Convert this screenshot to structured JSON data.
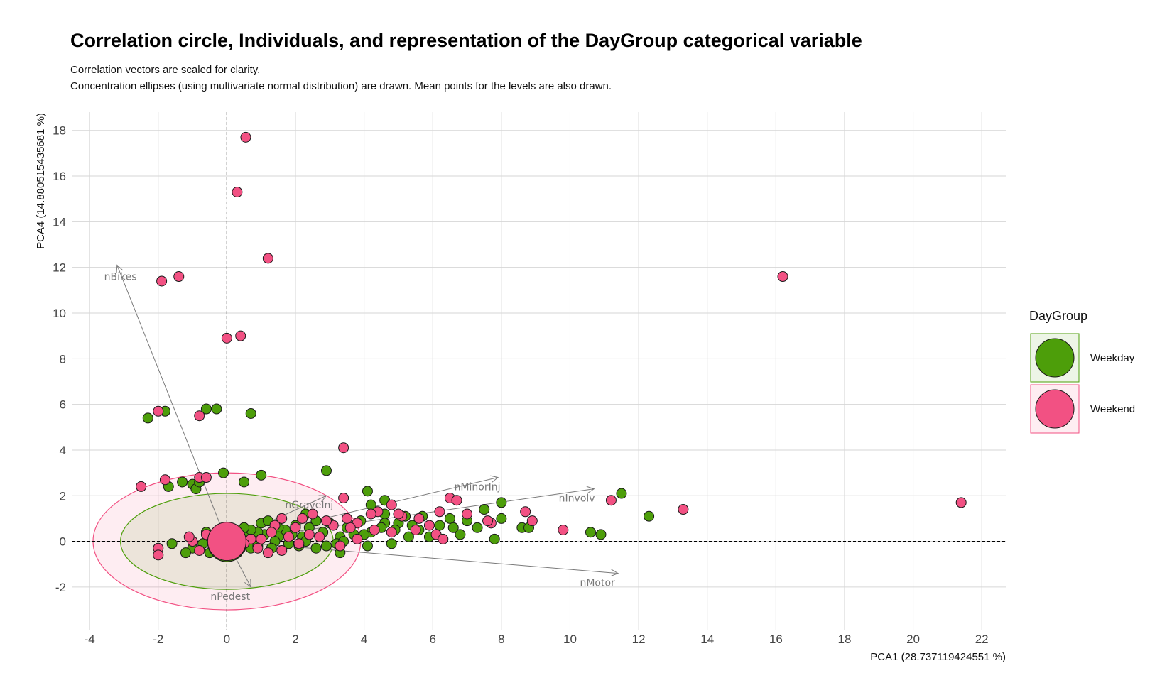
{
  "title": "Correlation circle, Individuals, and representation of the DayGroup categorical variable",
  "subtitle_lines": [
    "Correlation vectors are scaled for clarity.",
    "Concentration ellipses (using multivariate normal distribution) are drawn. Mean points for the levels are also drawn."
  ],
  "chart_data": {
    "type": "scatter",
    "xlabel": "PCA1 (28.737119424551 %)",
    "ylabel": "PCA4 (14.880515435681 %)",
    "xlim": [
      -4.5,
      22.7
    ],
    "ylim": [
      -3.9,
      18.8
    ],
    "xticks": [
      -4,
      -2,
      0,
      2,
      4,
      6,
      8,
      10,
      12,
      14,
      16,
      18,
      20,
      22
    ],
    "yticks": [
      -2,
      0,
      2,
      4,
      6,
      8,
      10,
      12,
      14,
      16,
      18
    ],
    "grid": true,
    "legend": {
      "title": "DayGroup",
      "placement": "right",
      "items": [
        {
          "label": "Weekday",
          "color": "#4d9e0a"
        },
        {
          "label": "Weekend",
          "color": "#f25183"
        }
      ]
    },
    "variables": [
      {
        "name": "nBikes",
        "x": -3.2,
        "y": 12.1
      },
      {
        "name": "nMinorInj",
        "x": 7.9,
        "y": 2.8
      },
      {
        "name": "nInvolv",
        "x": 10.7,
        "y": 2.3
      },
      {
        "name": "nGraveInj",
        "x": 2.9,
        "y": 2.0
      },
      {
        "name": "nMotor",
        "x": 11.4,
        "y": -1.4
      },
      {
        "name": "nPedest",
        "x": 0.7,
        "y": -2.0
      }
    ],
    "variable_label_positions": [
      {
        "name": "nBikes",
        "x": -3.1,
        "y": 11.6
      },
      {
        "name": "nMinorInj",
        "x": 7.3,
        "y": 2.4
      },
      {
        "name": "nInvolv",
        "x": 10.2,
        "y": 1.9
      },
      {
        "name": "nGraveInj",
        "x": 2.4,
        "y": 1.6
      },
      {
        "name": "nMotor",
        "x": 10.8,
        "y": -1.8
      },
      {
        "name": "nPedest",
        "x": 0.1,
        "y": -2.4
      }
    ],
    "ellipses": [
      {
        "group": "Weekend",
        "cx": 0,
        "cy": 0,
        "rx": 3.9,
        "ry": 3.0
      },
      {
        "group": "Weekday",
        "cx": 0,
        "cy": 0,
        "rx": 3.1,
        "ry": 2.1
      }
    ],
    "group_means": [
      {
        "group": "Weekday",
        "x": 0.0,
        "y": -0.05
      },
      {
        "group": "Weekend",
        "x": 0.0,
        "y": 0.0
      }
    ],
    "series": [
      {
        "name": "Weekday",
        "color": "#4d9e0a",
        "points": [
          [
            -2.3,
            5.4
          ],
          [
            -1.8,
            5.7
          ],
          [
            -0.6,
            5.8
          ],
          [
            -0.3,
            5.8
          ],
          [
            0.7,
            5.6
          ],
          [
            -0.1,
            3.0
          ],
          [
            0.5,
            2.6
          ],
          [
            1.0,
            2.9
          ],
          [
            2.9,
            3.1
          ],
          [
            -1.3,
            2.6
          ],
          [
            -1.0,
            2.5
          ],
          [
            -0.9,
            2.3
          ],
          [
            -0.8,
            2.6
          ],
          [
            -1.7,
            2.4
          ],
          [
            4.1,
            2.2
          ],
          [
            11.5,
            2.1
          ],
          [
            12.3,
            1.1
          ],
          [
            7.5,
            1.4
          ],
          [
            8.0,
            1.7
          ],
          [
            8.0,
            1.0
          ],
          [
            8.6,
            0.6
          ],
          [
            8.8,
            0.6
          ],
          [
            7.8,
            0.1
          ],
          [
            10.6,
            0.4
          ],
          [
            10.9,
            0.3
          ],
          [
            6.8,
            0.3
          ],
          [
            7.3,
            0.6
          ],
          [
            6.2,
            0.7
          ],
          [
            6.5,
            1.0
          ],
          [
            5.7,
            1.1
          ],
          [
            5.4,
            0.7
          ],
          [
            5.0,
            0.8
          ],
          [
            5.2,
            1.1
          ],
          [
            4.6,
            1.8
          ],
          [
            4.2,
            1.6
          ],
          [
            4.6,
            1.2
          ],
          [
            4.2,
            0.4
          ],
          [
            4.0,
            0.3
          ],
          [
            4.1,
            -0.2
          ],
          [
            4.8,
            -0.1
          ],
          [
            5.3,
            0.2
          ],
          [
            5.9,
            0.2
          ],
          [
            4.6,
            0.8
          ],
          [
            4.9,
            0.5
          ],
          [
            4.5,
            0.6
          ],
          [
            3.9,
            0.9
          ],
          [
            3.5,
            0.6
          ],
          [
            3.3,
            0.2
          ],
          [
            3.2,
            -0.1
          ],
          [
            3.3,
            -0.5
          ],
          [
            3.0,
            0.8
          ],
          [
            2.8,
            0.4
          ],
          [
            2.6,
            0.9
          ],
          [
            2.4,
            0.6
          ],
          [
            2.3,
            1.2
          ],
          [
            2.2,
            0.2
          ],
          [
            2.6,
            -0.3
          ],
          [
            2.3,
            0.0
          ],
          [
            2.0,
            0.7
          ],
          [
            1.9,
            0.3
          ],
          [
            1.7,
            0.5
          ],
          [
            1.5,
            0.6
          ],
          [
            1.5,
            0.2
          ],
          [
            1.4,
            0.0
          ],
          [
            1.3,
            -0.3
          ],
          [
            1.1,
            0.3
          ],
          [
            1.0,
            0.8
          ],
          [
            0.9,
            0.4
          ],
          [
            0.8,
            0.0
          ],
          [
            0.7,
            -0.3
          ],
          [
            0.7,
            0.5
          ],
          [
            0.5,
            0.2
          ],
          [
            0.4,
            -0.3
          ],
          [
            0.3,
            0.4
          ],
          [
            0.2,
            -0.1
          ],
          [
            -0.1,
            -0.5
          ],
          [
            -0.3,
            -0.3
          ],
          [
            -0.4,
            0.2
          ],
          [
            -0.5,
            -0.5
          ],
          [
            -0.6,
            0.4
          ],
          [
            -0.7,
            -0.1
          ],
          [
            -1.0,
            -0.3
          ],
          [
            -1.2,
            -0.5
          ],
          [
            -1.6,
            -0.1
          ],
          [
            0.5,
            0.6
          ],
          [
            0.9,
            -0.2
          ],
          [
            1.2,
            0.9
          ],
          [
            1.8,
            -0.1
          ],
          [
            2.1,
            -0.2
          ],
          [
            2.9,
            -0.2
          ],
          [
            3.4,
            0.0
          ],
          [
            3.7,
            0.3
          ],
          [
            6.6,
            0.6
          ],
          [
            7.0,
            0.9
          ],
          [
            5.6,
            0.5
          ]
        ]
      },
      {
        "name": "Weekend",
        "color": "#f25183",
        "points": [
          [
            0.55,
            17.7
          ],
          [
            0.3,
            15.3
          ],
          [
            1.2,
            12.4
          ],
          [
            -1.4,
            11.6
          ],
          [
            -1.9,
            11.4
          ],
          [
            16.2,
            11.6
          ],
          [
            0.0,
            8.9
          ],
          [
            0.4,
            9.0
          ],
          [
            -2.0,
            5.7
          ],
          [
            -0.8,
            5.5
          ],
          [
            3.4,
            4.1
          ],
          [
            -2.5,
            2.4
          ],
          [
            -1.8,
            2.7
          ],
          [
            -0.8,
            2.8
          ],
          [
            -0.6,
            2.8
          ],
          [
            3.4,
            1.9
          ],
          [
            21.4,
            1.7
          ],
          [
            13.3,
            1.4
          ],
          [
            11.2,
            1.8
          ],
          [
            8.7,
            1.3
          ],
          [
            7.7,
            0.8
          ],
          [
            6.5,
            1.9
          ],
          [
            6.7,
            1.8
          ],
          [
            7.0,
            1.2
          ],
          [
            6.2,
            1.3
          ],
          [
            5.9,
            0.7
          ],
          [
            5.1,
            1.1
          ],
          [
            5.6,
            1.0
          ],
          [
            5.0,
            1.2
          ],
          [
            4.4,
            1.3
          ],
          [
            4.2,
            1.2
          ],
          [
            4.8,
            1.6
          ],
          [
            4.8,
            0.4
          ],
          [
            5.5,
            0.5
          ],
          [
            6.1,
            0.3
          ],
          [
            6.3,
            0.1
          ],
          [
            9.8,
            0.5
          ],
          [
            3.8,
            0.8
          ],
          [
            3.6,
            0.6
          ],
          [
            3.5,
            1.0
          ],
          [
            3.1,
            0.7
          ],
          [
            2.9,
            0.9
          ],
          [
            2.5,
            1.2
          ],
          [
            2.2,
            1.0
          ],
          [
            2.0,
            0.6
          ],
          [
            1.6,
            1.0
          ],
          [
            1.4,
            0.7
          ],
          [
            1.3,
            0.4
          ],
          [
            1.0,
            0.1
          ],
          [
            1.2,
            -0.5
          ],
          [
            0.9,
            -0.3
          ],
          [
            0.7,
            0.1
          ],
          [
            0.5,
            -0.1
          ],
          [
            0.3,
            -0.5
          ],
          [
            -0.2,
            0.5
          ],
          [
            -0.4,
            -0.2
          ],
          [
            -0.6,
            0.3
          ],
          [
            -0.8,
            -0.4
          ],
          [
            -1.0,
            0.0
          ],
          [
            -1.1,
            0.2
          ],
          [
            -2.0,
            -0.3
          ],
          [
            -2.0,
            -0.6
          ],
          [
            2.1,
            -0.1
          ],
          [
            2.4,
            0.3
          ],
          [
            2.7,
            0.2
          ],
          [
            3.3,
            -0.2
          ],
          [
            3.8,
            0.1
          ],
          [
            1.8,
            0.2
          ],
          [
            1.6,
            -0.4
          ],
          [
            4.3,
            0.5
          ],
          [
            7.6,
            0.9
          ],
          [
            8.9,
            0.9
          ]
        ]
      }
    ]
  }
}
